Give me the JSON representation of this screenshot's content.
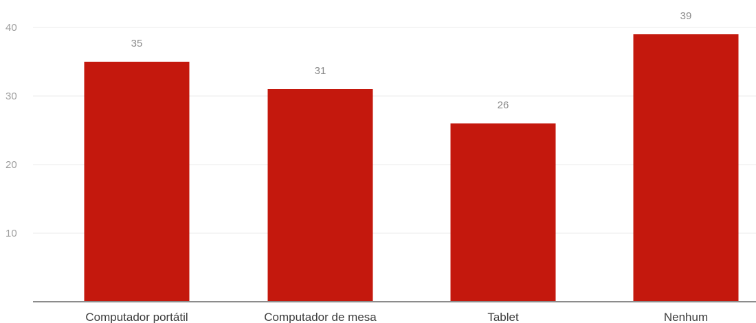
{
  "chart_data": {
    "type": "bar",
    "title": "",
    "xlabel": "",
    "ylabel": "",
    "categories": [
      "Computador portátil",
      "Computador de mesa",
      "Tablet",
      "Nenhum"
    ],
    "values": [
      35,
      31,
      26,
      39
    ],
    "ylim": [
      0,
      40
    ],
    "yticks": [
      10,
      20,
      30,
      40
    ],
    "grid": true,
    "legend": "none",
    "bar_color": "#c4180d"
  }
}
